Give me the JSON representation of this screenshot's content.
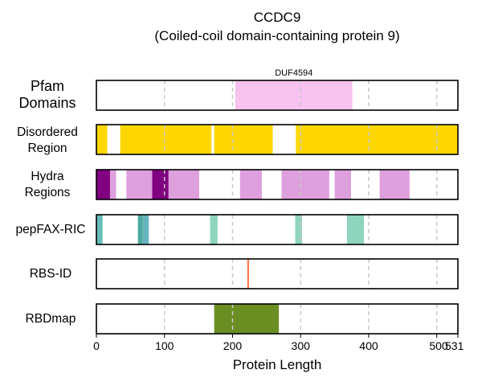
{
  "chart_data": {
    "type": "bar",
    "title": "CCDC9",
    "subtitle": "(Coiled-coil domain-containing protein 9)",
    "xlabel": "Protein Length",
    "xlim": [
      0,
      531
    ],
    "x_ticks": [
      0,
      100,
      200,
      300,
      400,
      500,
      531
    ],
    "grid": "vertical dashed at ticks",
    "tracks": [
      {
        "label_lines": [
          "Pfam",
          "Domains"
        ],
        "features": [
          {
            "start": 204,
            "end": 376,
            "color": "#f7c2ef",
            "label": "DUF4594"
          }
        ]
      },
      {
        "label_lines": [
          "Disordered",
          "Region"
        ],
        "features": [
          {
            "start": 0,
            "end": 16,
            "color": "#ffd700"
          },
          {
            "start": 35,
            "end": 169,
            "color": "#ffd700"
          },
          {
            "start": 173,
            "end": 259,
            "color": "#ffd700"
          },
          {
            "start": 293,
            "end": 531,
            "color": "#ffd700"
          }
        ]
      },
      {
        "label_lines": [
          "Hydra",
          "Regions"
        ],
        "features": [
          {
            "start": 0,
            "end": 20,
            "color": "#800080"
          },
          {
            "start": 20,
            "end": 29,
            "color": "#dda0dd"
          },
          {
            "start": 44,
            "end": 82,
            "color": "#dda0dd"
          },
          {
            "start": 82,
            "end": 106,
            "color": "#800080"
          },
          {
            "start": 106,
            "end": 151,
            "color": "#dda0dd"
          },
          {
            "start": 211,
            "end": 243,
            "color": "#dda0dd"
          },
          {
            "start": 272,
            "end": 342,
            "color": "#dda0dd"
          },
          {
            "start": 350,
            "end": 374,
            "color": "#dda0dd"
          },
          {
            "start": 416,
            "end": 460,
            "color": "#dda0dd"
          }
        ]
      },
      {
        "label_lines": [
          "pepFAX-RIC"
        ],
        "features": [
          {
            "start": 0,
            "end": 9,
            "color": "#66bdb8"
          },
          {
            "start": 61,
            "end": 68,
            "color": "#4da8a0"
          },
          {
            "start": 68,
            "end": 77,
            "color": "#66b4bd"
          },
          {
            "start": 167,
            "end": 178,
            "color": "#8fd4bd"
          },
          {
            "start": 292,
            "end": 302,
            "color": "#8fd4bd"
          },
          {
            "start": 368,
            "end": 393,
            "color": "#8fd4bd"
          }
        ]
      },
      {
        "label_lines": [
          "RBS-ID"
        ],
        "features": [
          {
            "start": 222,
            "end": 223,
            "color": "#ff4500"
          }
        ]
      },
      {
        "label_lines": [
          "RBDmap"
        ],
        "features": [
          {
            "start": 173,
            "end": 268,
            "color": "#6b8e23"
          }
        ]
      }
    ]
  }
}
